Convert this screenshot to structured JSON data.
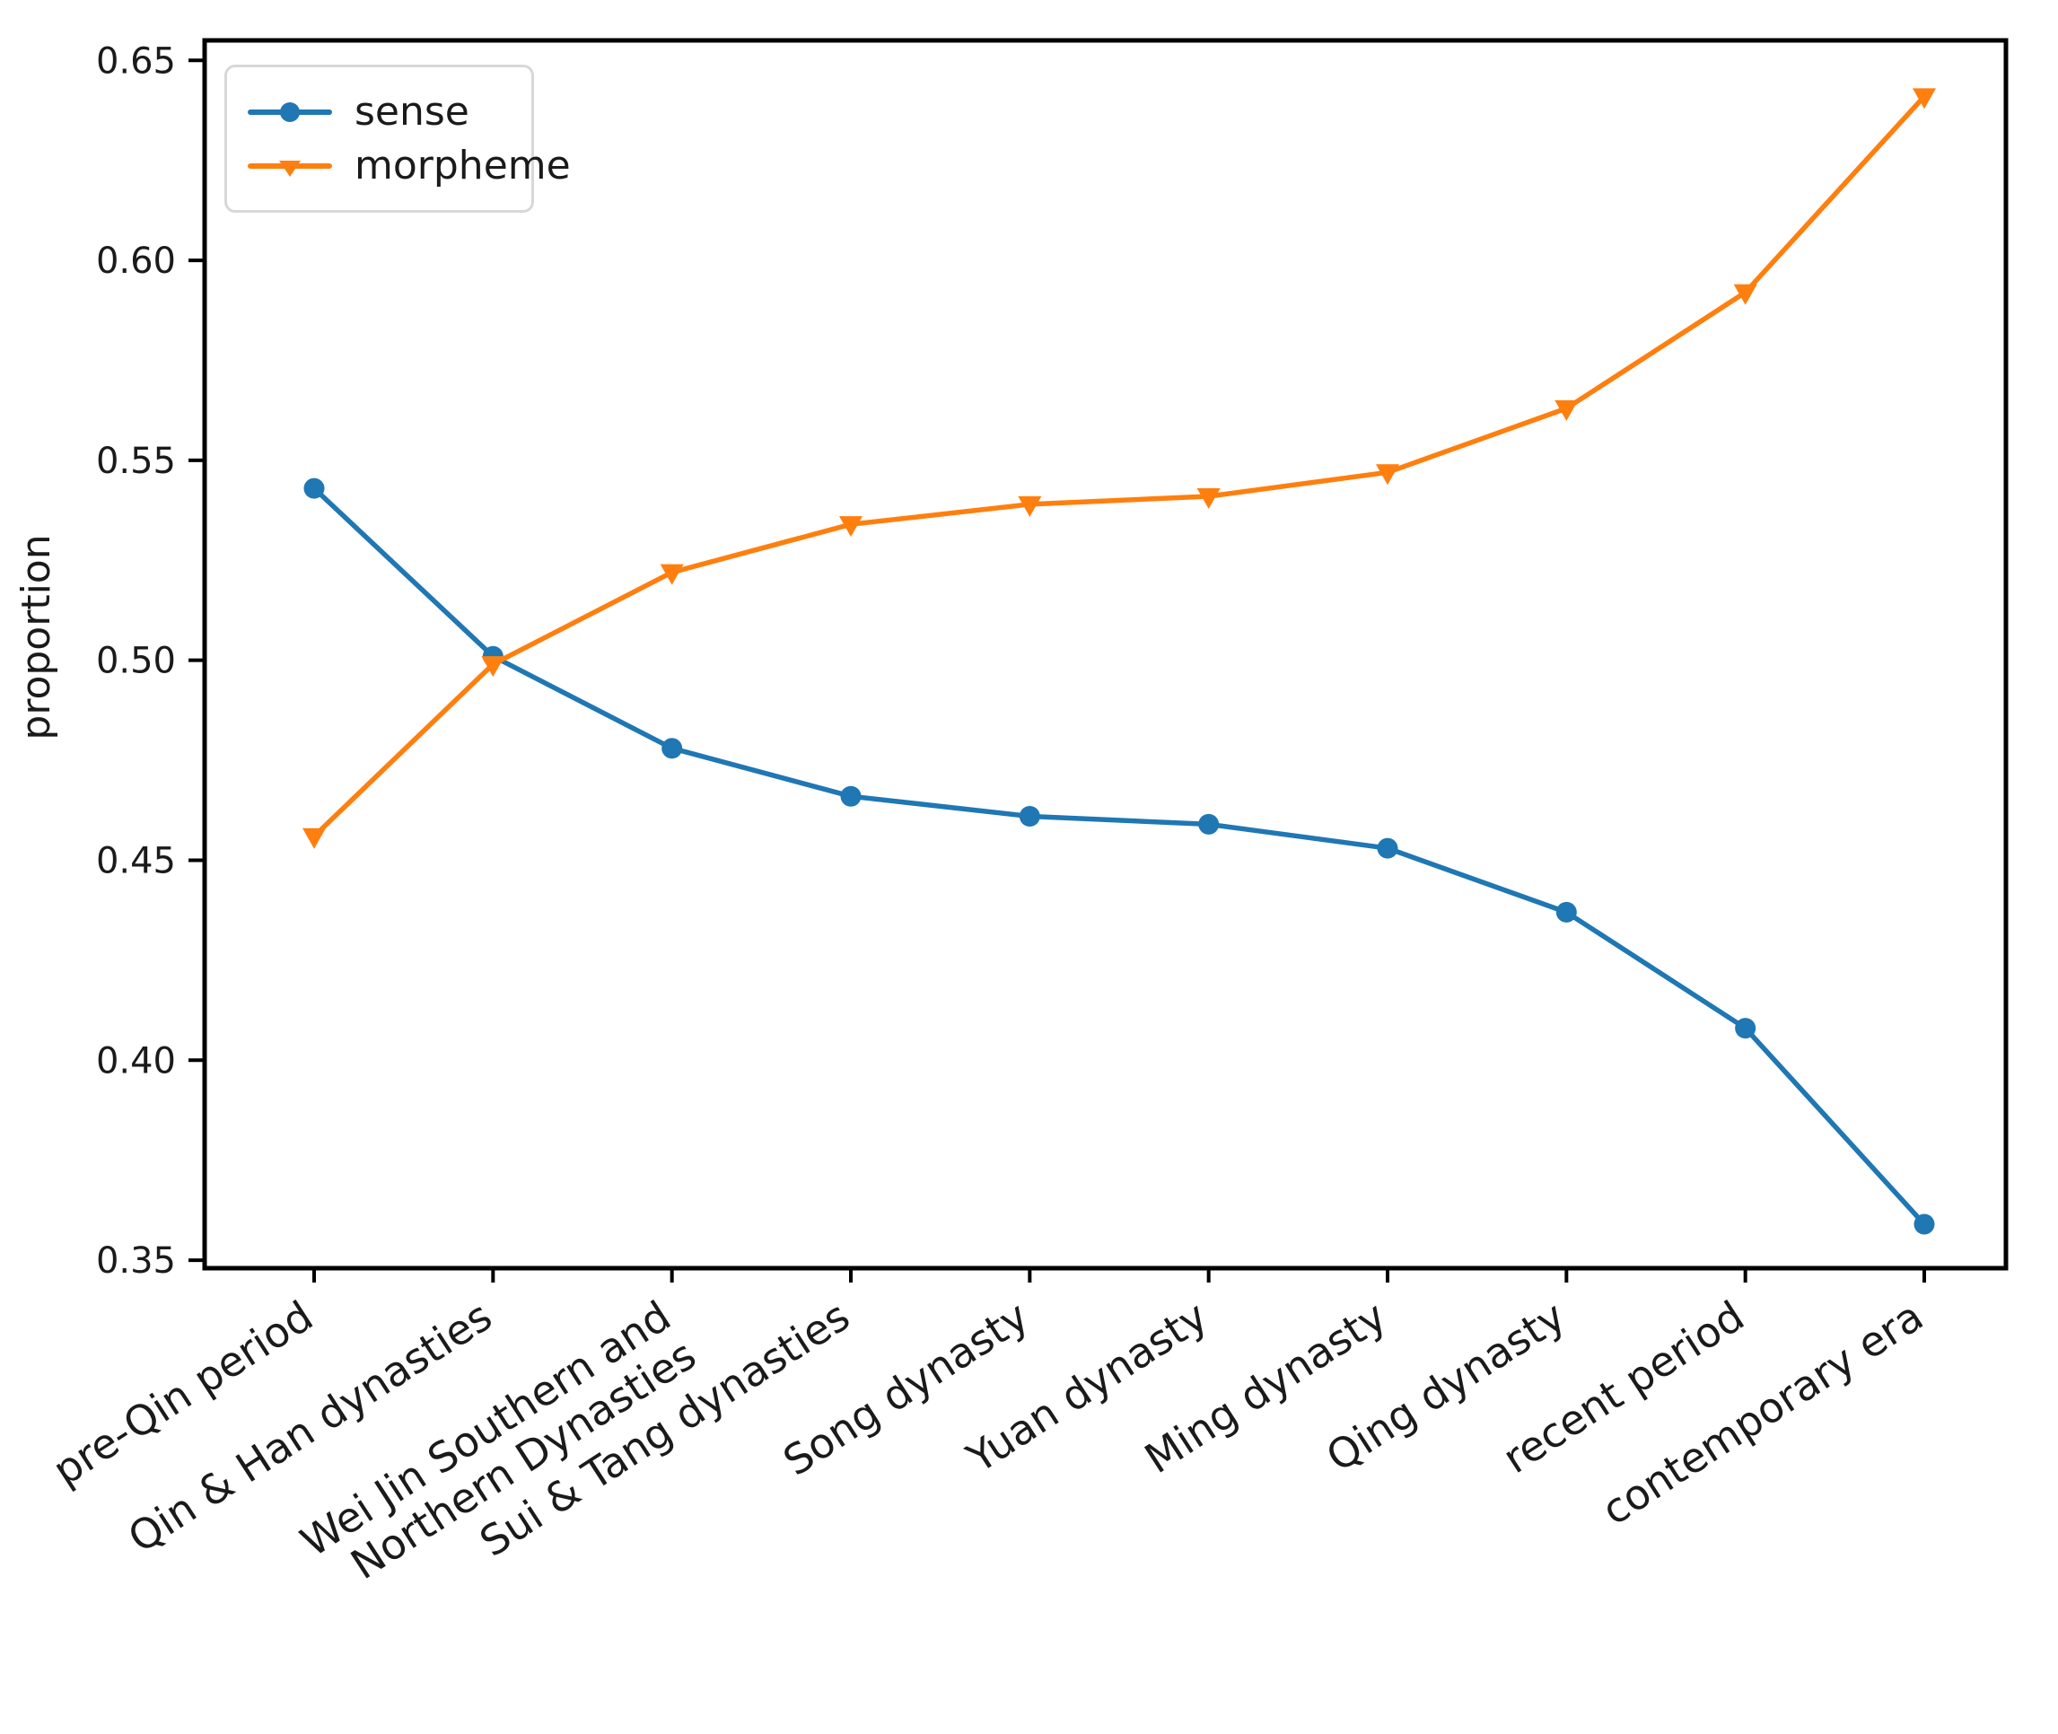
{
  "chart_data": {
    "type": "line",
    "title": "",
    "xlabel": "",
    "ylabel": "proportion",
    "categories": [
      "pre-Qin period",
      "Qin & Han dynasties",
      "Wei Jin Southern and\nNorthern Dynasties",
      "Sui & Tang dynasties",
      "Song dynasty",
      "Yuan dynasty",
      "Ming dynasty",
      "Qing dynasty",
      "recent period",
      "contemporary era"
    ],
    "series": [
      {
        "name": "sense",
        "marker": "circle",
        "color": "#1f77b4",
        "values": [
          0.543,
          0.501,
          0.478,
          0.466,
          0.461,
          0.459,
          0.453,
          0.437,
          0.408,
          0.359
        ]
      },
      {
        "name": "morpheme",
        "marker": "triangle-down",
        "color": "#ff7f0e",
        "values": [
          0.456,
          0.499,
          0.522,
          0.534,
          0.539,
          0.541,
          0.547,
          0.563,
          0.592,
          0.641
        ]
      }
    ],
    "yticks": [
      0.35,
      0.4,
      0.45,
      0.5,
      0.55,
      0.6,
      0.65
    ],
    "ytick_labels": [
      "0.35",
      "0.40",
      "0.45",
      "0.50",
      "0.55",
      "0.60",
      "0.65"
    ],
    "ylim": [
      0.348,
      0.655
    ],
    "grid": false,
    "legend_position": "upper-left",
    "axis_color": "#000000",
    "tick_label_color": "#1a1a1a",
    "x_label_rotation_deg": -33
  }
}
